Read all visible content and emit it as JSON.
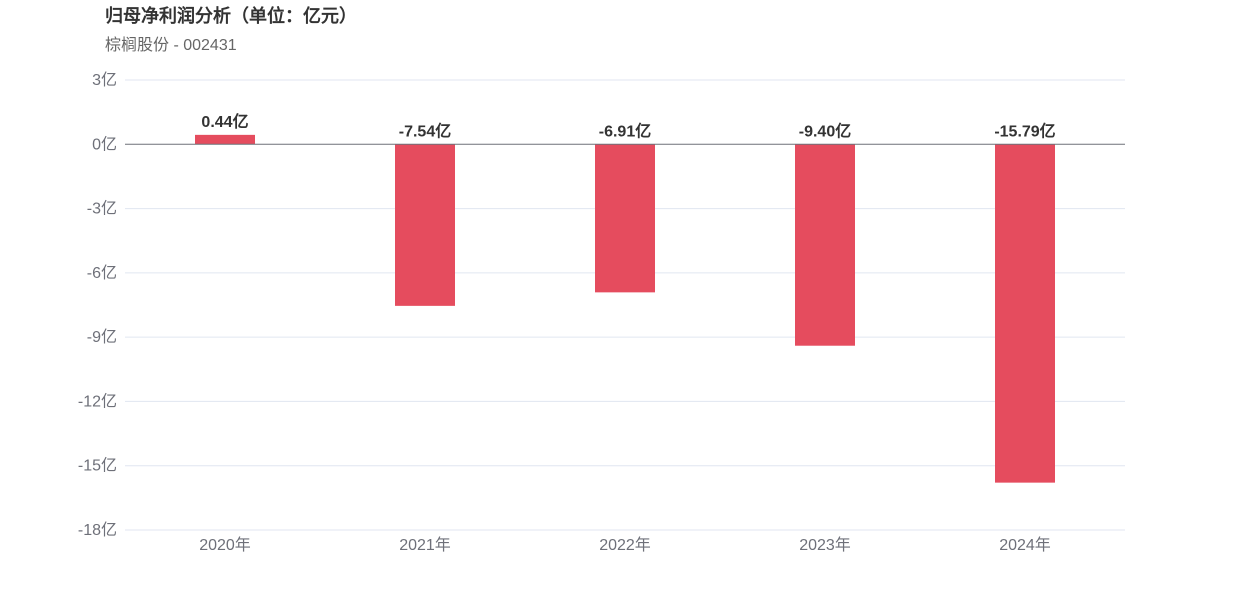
{
  "header": {
    "title": "归母净利润分析（单位：亿元）",
    "subtitle": "棕榈股份 - 002431"
  },
  "chart_data": {
    "type": "bar",
    "categories": [
      "2020年",
      "2021年",
      "2022年",
      "2023年",
      "2024年"
    ],
    "values": [
      0.44,
      -7.54,
      -6.91,
      -9.4,
      -15.79
    ],
    "data_labels": [
      "0.44亿",
      "-7.54亿",
      "-6.91亿",
      "-9.40亿",
      "-15.79亿"
    ],
    "yticks": [
      3,
      0,
      -3,
      -6,
      -9,
      -12,
      -15,
      -18
    ],
    "ytick_labels": [
      "3亿",
      "0亿",
      "-3亿",
      "-6亿",
      "-9亿",
      "-12亿",
      "-15亿",
      "-18亿"
    ],
    "ylim": [
      -18,
      3
    ],
    "grid": true,
    "bar_color": "#e54c5e",
    "title": "归母净利润分析（单位：亿元）",
    "subtitle": "棕榈股份 - 002431"
  }
}
